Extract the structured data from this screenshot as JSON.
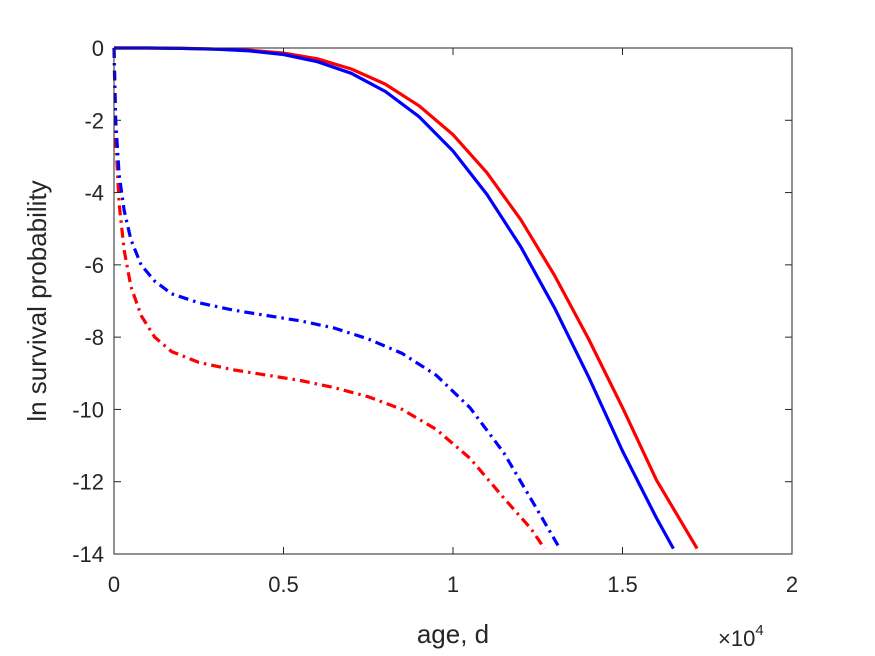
{
  "chart_data": {
    "type": "line",
    "xlabel": "age, d",
    "ylabel": "ln survival probability",
    "x_multiplier": "×10",
    "x_multiplier_exponent": "4",
    "xlim": [
      0,
      20000
    ],
    "ylim": [
      -14,
      0
    ],
    "x_ticks": [
      0,
      5000,
      10000,
      15000,
      20000
    ],
    "x_tick_labels": [
      "0",
      "0.5",
      "1",
      "1.5",
      "2"
    ],
    "y_ticks": [
      0,
      -2,
      -4,
      -6,
      -8,
      -10,
      -12,
      -14
    ],
    "y_tick_labels": [
      "0",
      "-2",
      "-4",
      "-6",
      "-8",
      "-10",
      "-12",
      "-14"
    ],
    "grid": false,
    "series": [
      {
        "color": "#ff0000",
        "style": "solid",
        "points": [
          [
            0,
            0
          ],
          [
            1000,
            0
          ],
          [
            2000,
            -0.01
          ],
          [
            3000,
            -0.03
          ],
          [
            4000,
            -0.06
          ],
          [
            5000,
            -0.14
          ],
          [
            6000,
            -0.3
          ],
          [
            7000,
            -0.58
          ],
          [
            8000,
            -1.0
          ],
          [
            9000,
            -1.6
          ],
          [
            10000,
            -2.4
          ],
          [
            11000,
            -3.45
          ],
          [
            12000,
            -4.75
          ],
          [
            13000,
            -6.3
          ],
          [
            14000,
            -8.05
          ],
          [
            15000,
            -9.95
          ],
          [
            16000,
            -11.95
          ],
          [
            17200,
            -13.85
          ]
        ]
      },
      {
        "color": "#0000ff",
        "style": "solid",
        "points": [
          [
            0,
            0
          ],
          [
            1000,
            0
          ],
          [
            2000,
            -0.01
          ],
          [
            3000,
            -0.03
          ],
          [
            4000,
            -0.08
          ],
          [
            5000,
            -0.18
          ],
          [
            6000,
            -0.38
          ],
          [
            7000,
            -0.7
          ],
          [
            8000,
            -1.2
          ],
          [
            9000,
            -1.9
          ],
          [
            10000,
            -2.85
          ],
          [
            11000,
            -4.05
          ],
          [
            12000,
            -5.5
          ],
          [
            13000,
            -7.2
          ],
          [
            14000,
            -9.1
          ],
          [
            15000,
            -11.15
          ],
          [
            16000,
            -13.0
          ],
          [
            16500,
            -13.85
          ]
        ]
      },
      {
        "color": "#ff0000",
        "style": "dashdot",
        "points": [
          [
            0,
            0
          ],
          [
            50,
            -2.5
          ],
          [
            150,
            -4.3
          ],
          [
            300,
            -5.6
          ],
          [
            500,
            -6.6
          ],
          [
            800,
            -7.4
          ],
          [
            1200,
            -8.0
          ],
          [
            1700,
            -8.4
          ],
          [
            2500,
            -8.7
          ],
          [
            3500,
            -8.9
          ],
          [
            4500,
            -9.05
          ],
          [
            5500,
            -9.2
          ],
          [
            6500,
            -9.4
          ],
          [
            7500,
            -9.65
          ],
          [
            8500,
            -10.0
          ],
          [
            9500,
            -10.55
          ],
          [
            10500,
            -11.35
          ],
          [
            11500,
            -12.45
          ],
          [
            12300,
            -13.3
          ],
          [
            12700,
            -13.85
          ]
        ]
      },
      {
        "color": "#0000ff",
        "style": "dashdot",
        "points": [
          [
            0,
            0
          ],
          [
            50,
            -2.0
          ],
          [
            150,
            -3.5
          ],
          [
            300,
            -4.5
          ],
          [
            500,
            -5.3
          ],
          [
            800,
            -6.0
          ],
          [
            1200,
            -6.45
          ],
          [
            1700,
            -6.8
          ],
          [
            2500,
            -7.05
          ],
          [
            3500,
            -7.25
          ],
          [
            4500,
            -7.4
          ],
          [
            5500,
            -7.55
          ],
          [
            6500,
            -7.75
          ],
          [
            7500,
            -8.05
          ],
          [
            8500,
            -8.45
          ],
          [
            9500,
            -9.05
          ],
          [
            10500,
            -9.95
          ],
          [
            11500,
            -11.2
          ],
          [
            12500,
            -12.8
          ],
          [
            13150,
            -13.85
          ]
        ]
      }
    ]
  }
}
